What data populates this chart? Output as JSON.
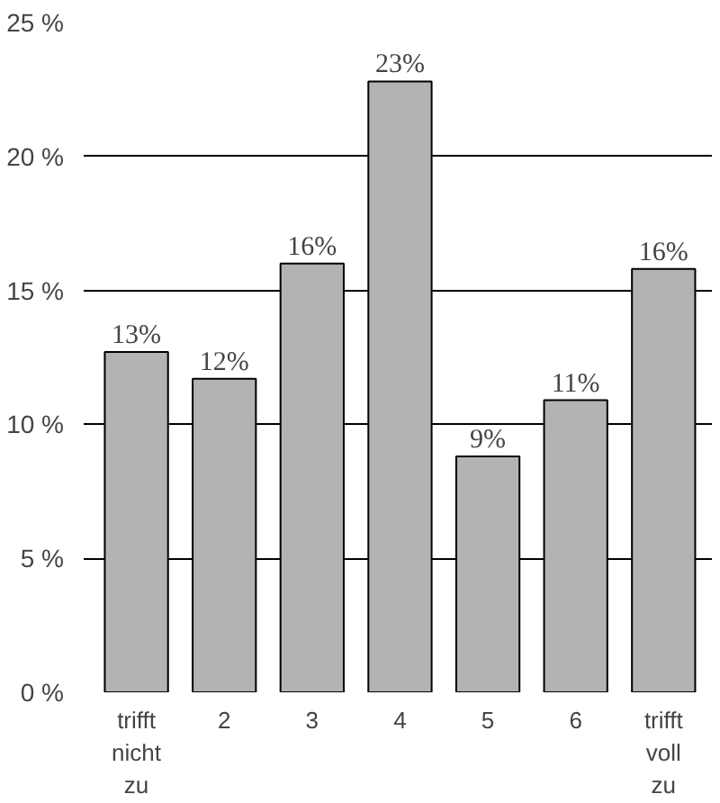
{
  "chart_data": {
    "type": "bar",
    "categories": [
      "trifft nicht zu",
      "2",
      "3",
      "4",
      "5",
      "6",
      "trifft voll zu"
    ],
    "values": [
      12.7,
      11.7,
      16.0,
      22.8,
      8.8,
      10.9,
      15.8
    ],
    "value_labels": [
      "13%",
      "12%",
      "16%",
      "23%",
      "9%",
      "11%",
      "16%"
    ],
    "color": "#b3b3b3",
    "ylim": [
      0,
      25
    ],
    "yticks": [
      {
        "value": 0,
        "label": "0 %"
      },
      {
        "value": 5,
        "label": "5 %"
      },
      {
        "value": 10,
        "label": "10 %"
      },
      {
        "value": 15,
        "label": "15 %"
      },
      {
        "value": 20,
        "label": "20 %"
      },
      {
        "value": 25,
        "label": "25 %"
      }
    ],
    "grid": "y"
  }
}
